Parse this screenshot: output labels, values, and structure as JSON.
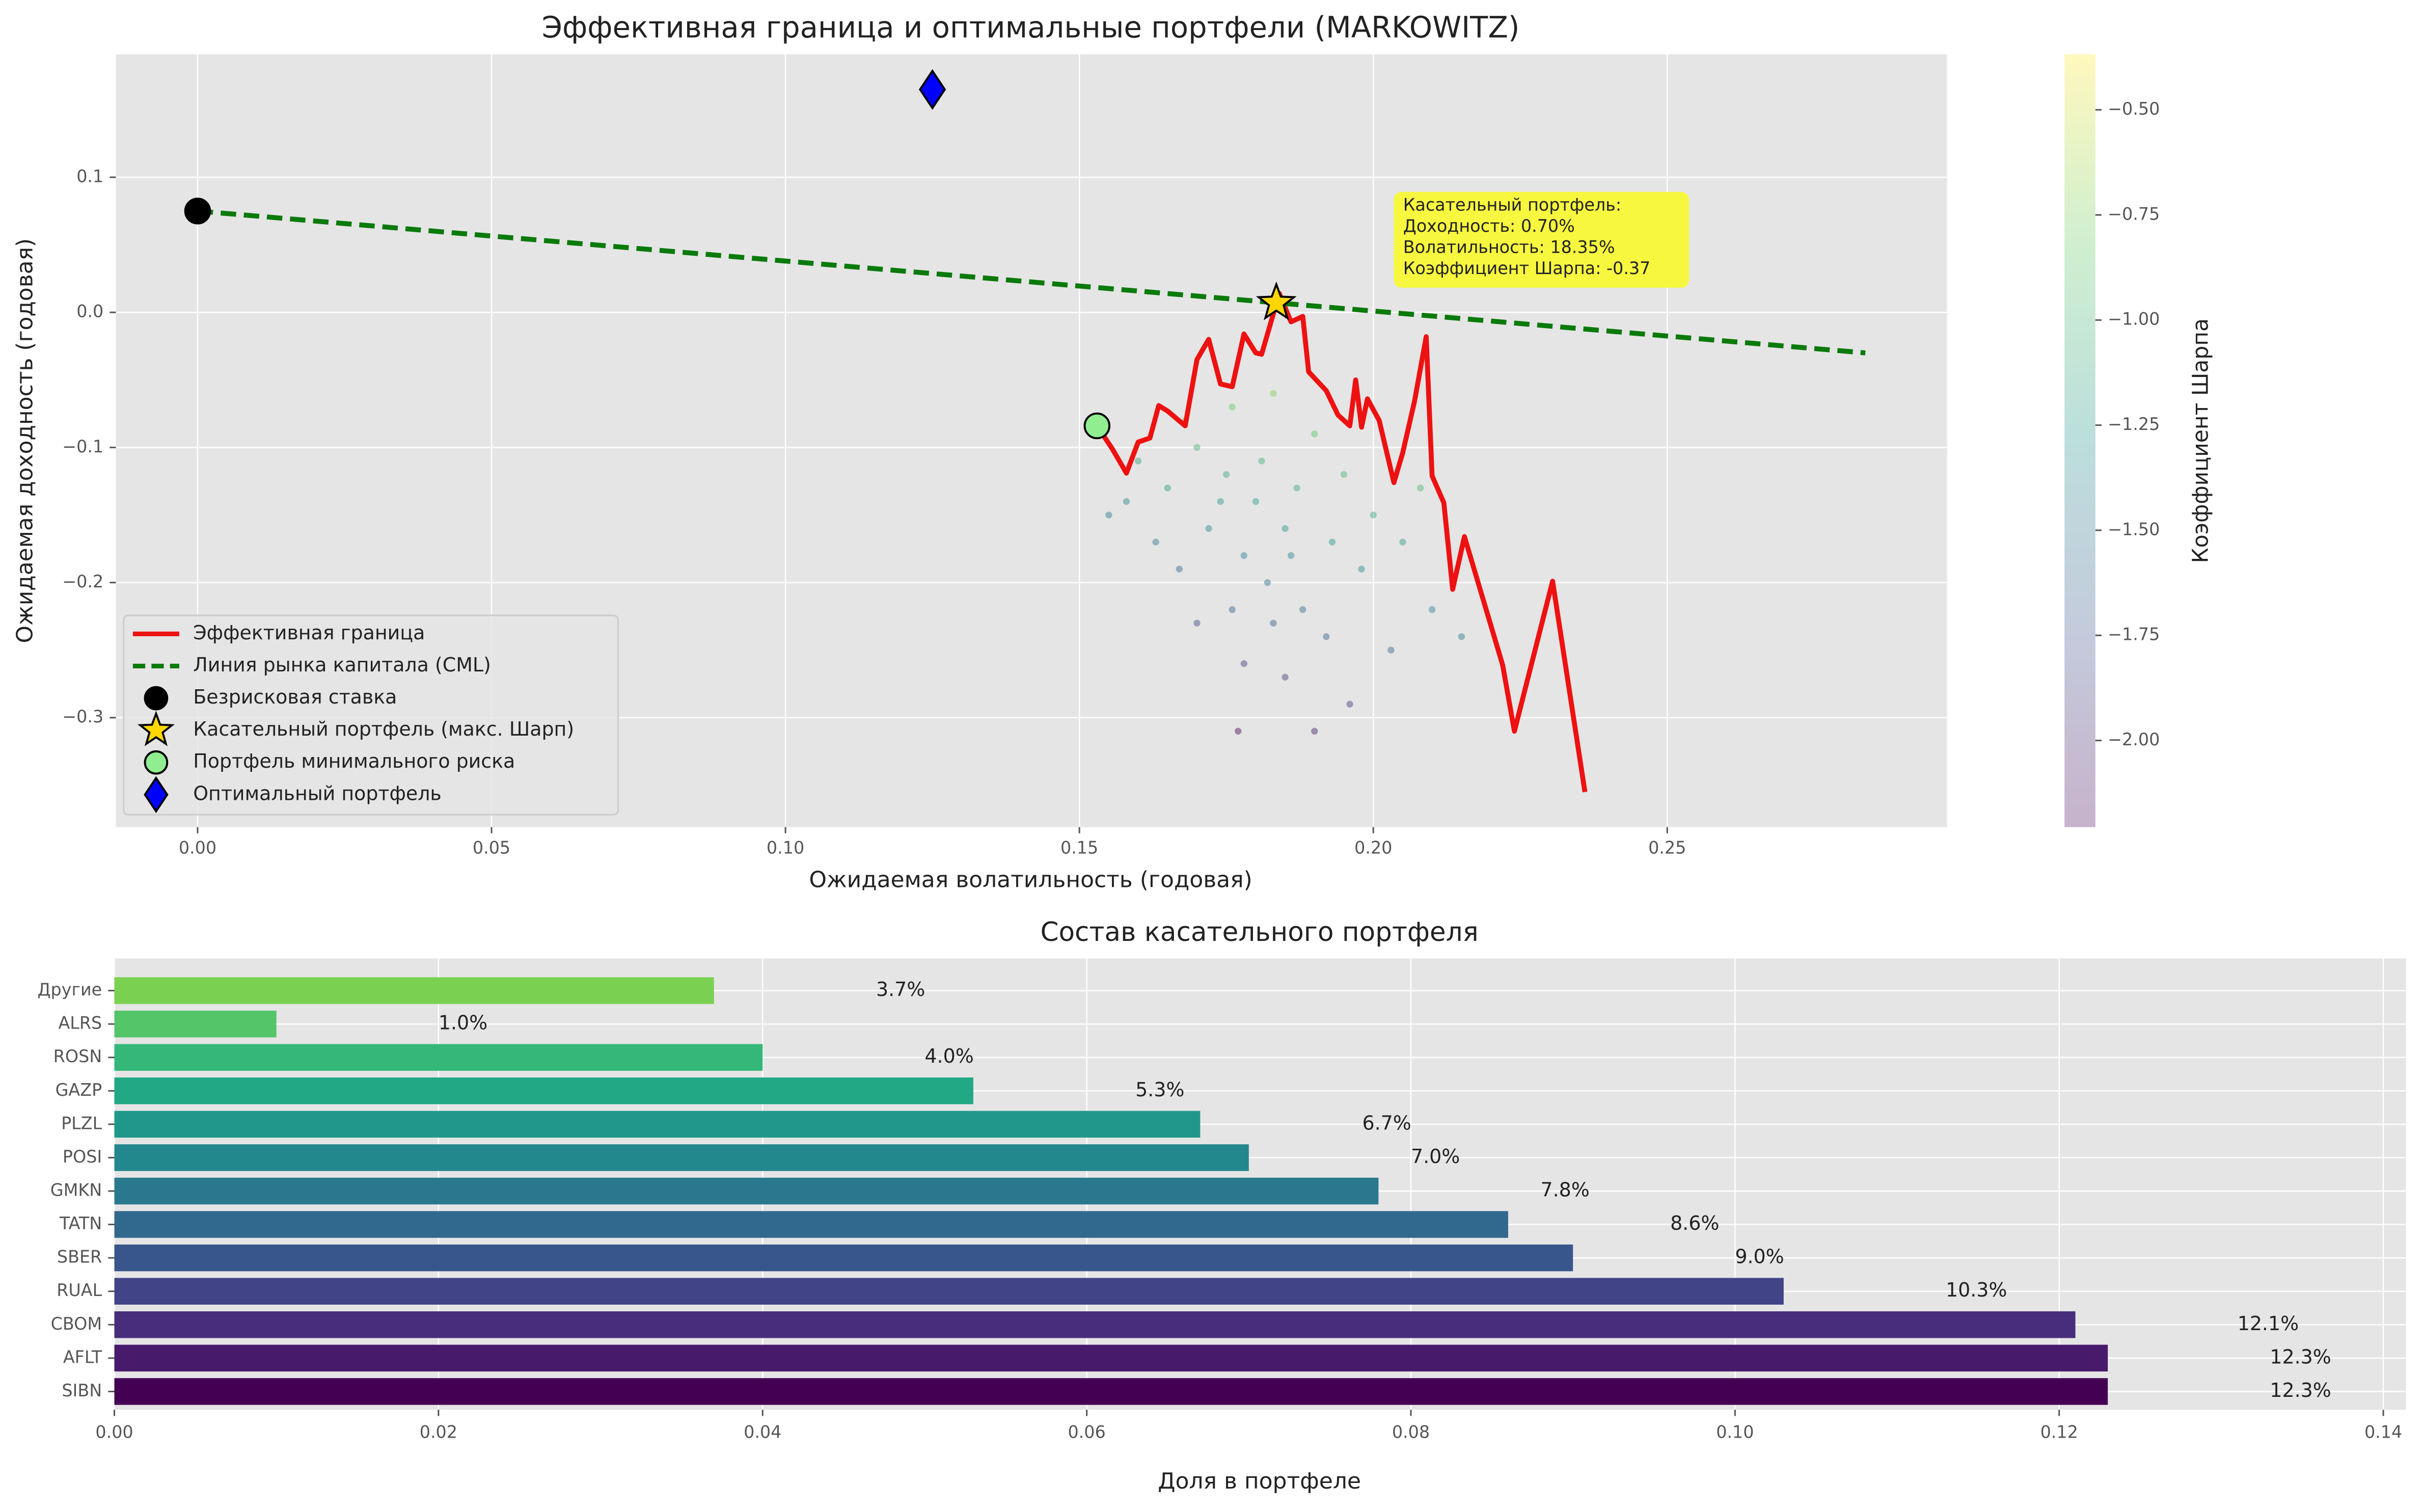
{
  "chart_data": [
    {
      "type": "scatter",
      "title": "Эффективная граница и оптимальные портфели (MARKOWITZ)",
      "xlabel": "Ожидаемая волатильность (годовая)",
      "ylabel": "Ожидаемая доходность (годовая)",
      "xlim": [
        -0.0139,
        0.2976
      ],
      "ylim": [
        -0.381,
        0.191
      ],
      "xticks": [
        {
          "value": 0,
          "label": "0.00"
        },
        {
          "value": 0.05,
          "label": "0.05"
        },
        {
          "value": 0.1,
          "label": "0.10"
        },
        {
          "value": 0.15,
          "label": "0.15"
        },
        {
          "value": 0.2,
          "label": "0.20"
        },
        {
          "value": 0.25,
          "label": "0.25"
        }
      ],
      "yticks": [
        {
          "value": -0.3,
          "label": "−0.3"
        },
        {
          "value": -0.2,
          "label": "−0.2"
        },
        {
          "value": -0.1,
          "label": "−0.1"
        },
        {
          "value": 0,
          "label": "0.0"
        },
        0.1
      ],
      "grid": true,
      "legend": "lower left",
      "cloud": {
        "x": [
          0.17,
          0.175,
          0.18,
          0.185,
          0.178,
          0.182,
          0.188,
          0.176,
          0.172,
          0.165,
          0.16,
          0.168,
          0.176,
          0.183,
          0.19,
          0.195,
          0.2,
          0.198,
          0.192,
          0.185,
          0.178,
          0.17,
          0.163,
          0.158,
          0.205,
          0.21,
          0.203,
          0.196,
          0.19,
          0.177,
          0.186,
          0.181,
          0.174,
          0.187,
          0.193,
          0.167,
          0.215,
          0.208,
          0.155,
          0.183
        ],
        "y": [
          -0.1,
          -0.12,
          -0.14,
          -0.16,
          -0.18,
          -0.2,
          -0.22,
          -0.22,
          -0.16,
          -0.13,
          -0.11,
          -0.08,
          -0.07,
          -0.06,
          -0.09,
          -0.12,
          -0.15,
          -0.19,
          -0.24,
          -0.27,
          -0.26,
          -0.23,
          -0.17,
          -0.14,
          -0.17,
          -0.22,
          -0.25,
          -0.29,
          -0.31,
          -0.31,
          -0.18,
          -0.11,
          -0.14,
          -0.13,
          -0.17,
          -0.19,
          -0.24,
          -0.13,
          -0.15,
          -0.23
        ],
        "c": [
          -1.03,
          -1.11,
          -1.19,
          -1.27,
          -1.43,
          -1.51,
          -1.57,
          -1.68,
          -1.37,
          -1.24,
          -1.16,
          -0.92,
          -0.82,
          -0.74,
          -0.87,
          -1.0,
          -1.13,
          -1.34,
          -1.64,
          -1.86,
          -1.88,
          -1.79,
          -1.5,
          -1.36,
          -1.2,
          -1.4,
          -1.6,
          -1.86,
          -2.03,
          -2.18,
          -1.37,
          -1.02,
          -1.24,
          -1.1,
          -1.27,
          -1.59,
          -1.47,
          -0.99,
          -1.45,
          -1.67
        ]
      },
      "colorbar": {
        "label": "Коэффициент Шарпа",
        "clim": [
          -2.206,
          -0.368
        ],
        "ticks": [
          {
            "value": -0.5,
            "label": "−0.50"
          },
          {
            "value": -0.75,
            "label": "−0.75"
          },
          {
            "value": -1.0,
            "label": "−1.00"
          },
          {
            "value": -1.25,
            "label": "−1.25"
          },
          {
            "value": -1.5,
            "label": "−1.50"
          },
          {
            "value": -1.75,
            "label": "−1.75"
          },
          {
            "value": -2.0,
            "label": "−2.00"
          }
        ]
      },
      "series": [
        {
          "name": "Эффективная граница",
          "type": "line",
          "color": "#ee1111",
          "x": [
            0.153,
            0.1556,
            0.158,
            0.16,
            0.162,
            0.1635,
            0.165,
            0.168,
            0.17,
            0.172,
            0.174,
            0.176,
            0.178,
            0.18,
            0.181,
            0.183,
            0.184,
            0.186,
            0.188,
            0.189,
            0.192,
            0.194,
            0.196,
            0.197,
            0.198,
            0.199,
            0.201,
            0.2035,
            0.205,
            0.207,
            0.209,
            0.21,
            0.212,
            0.2135,
            0.2155,
            0.222,
            0.224,
            0.2305,
            0.236
          ],
          "y": [
            -0.084,
            -0.101,
            -0.119,
            -0.096,
            -0.093,
            -0.069,
            -0.073,
            -0.084,
            -0.035,
            -0.02,
            -0.053,
            -0.055,
            -0.016,
            -0.03,
            -0.031,
            -0.001,
            0.014,
            -0.007,
            -0.003,
            -0.044,
            -0.058,
            -0.076,
            -0.084,
            -0.05,
            -0.085,
            -0.064,
            -0.08,
            -0.126,
            -0.104,
            -0.066,
            -0.018,
            -0.121,
            -0.141,
            -0.205,
            -0.166,
            -0.261,
            -0.31,
            -0.199,
            -0.355
          ]
        },
        {
          "name": "Линия рынка капитала (CML)",
          "type": "line",
          "linestyle": "dashed",
          "color": "#0a7a0a",
          "x": [
            0,
            0.2837
          ],
          "y": [
            0.075,
            -0.03
          ]
        },
        {
          "name": "Безрисковая ставка",
          "type": "point",
          "marker": "circle",
          "color": "#000000",
          "x": [
            0
          ],
          "y": [
            0.075
          ]
        },
        {
          "name": "Касательный портфель (макс. Шарп)",
          "type": "point",
          "marker": "star",
          "color": "#ffd700",
          "x": [
            0.1835
          ],
          "y": [
            0.007
          ]
        },
        {
          "name": "Портфель минимального риска",
          "type": "point",
          "marker": "circle",
          "color": "#90ee90",
          "x": [
            0.153
          ],
          "y": [
            -0.084
          ]
        },
        {
          "name": "Оптимальный портфель",
          "type": "point",
          "marker": "diamond",
          "color": "#0000ff",
          "x": [
            0.125
          ],
          "y": [
            0.165
          ]
        }
      ],
      "annotation": [
        "Касательный портфель:",
        "Доходность: 0.70%",
        "Волатильность: 18.35%",
        "Коэффициент Шарпа: -0.37"
      ]
    },
    {
      "type": "barh",
      "title": "Состав касательного портфеля",
      "xlabel": "Доля в портфеле",
      "categories": [
        "Другие",
        "ALRS",
        "ROSN",
        "GAZP",
        "PLZL",
        "POSI",
        "GMKN",
        "TATN",
        "SBER",
        "RUAL",
        "CBOM",
        "AFLT",
        "SIBN"
      ],
      "values": [
        0.037,
        0.01,
        0.04,
        0.053,
        0.067,
        0.07,
        0.078,
        0.086,
        0.09,
        0.103,
        0.121,
        0.123,
        0.123
      ],
      "value_labels": [
        "3.7%",
        "1.0%",
        "4.0%",
        "5.3%",
        "6.7%",
        "7.0%",
        "7.8%",
        "8.6%",
        "9.0%",
        "10.3%",
        "12.1%",
        "12.3%",
        "12.3%"
      ],
      "colors": [
        "#7ad151",
        "#54c568",
        "#35b779",
        "#22a884",
        "#1f988b",
        "#23888e",
        "#2a788e",
        "#31688e",
        "#39568c",
        "#414487",
        "#472d7b",
        "#481a6c",
        "#440154"
      ],
      "xlim": [
        0,
        0.1414
      ],
      "xticks": [
        {
          "value": 0,
          "label": "0.00"
        },
        {
          "value": 0.02,
          "label": "0.02"
        },
        {
          "value": 0.04,
          "label": "0.04"
        },
        {
          "value": 0.06,
          "label": "0.06"
        },
        {
          "value": 0.08,
          "label": "0.08"
        },
        {
          "value": 0.1,
          "label": "0.10"
        },
        {
          "value": 0.12,
          "label": "0.12"
        },
        {
          "value": 0.14,
          "label": "0.14"
        }
      ],
      "grid": true
    }
  ]
}
